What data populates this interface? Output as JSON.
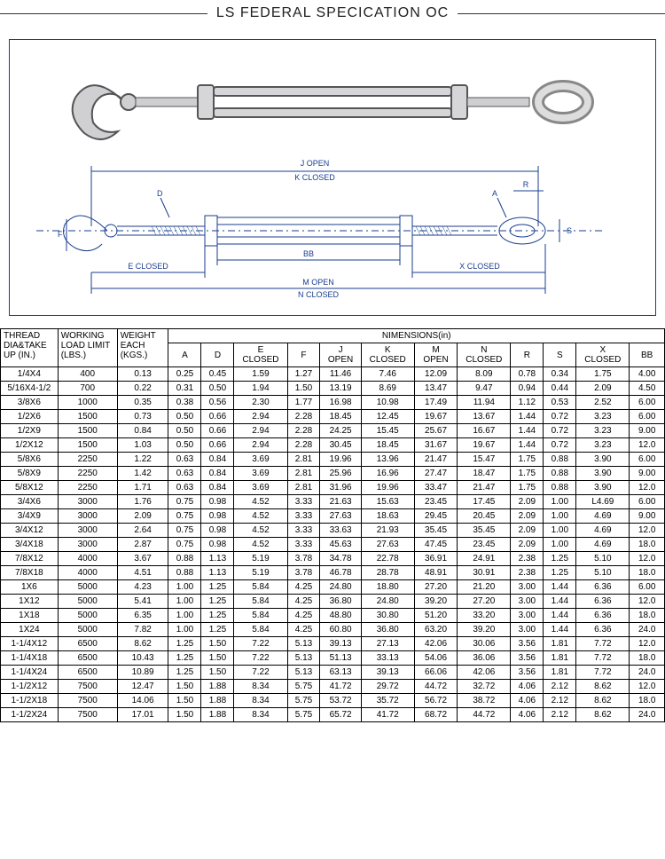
{
  "title": "LS FEDERAL SPECICATION OC",
  "diagram_labels": {
    "j_open": "J OPEN",
    "k_closed": "K CLOSED",
    "m_open": "M OPEN",
    "n_closed": "N CLOSED",
    "e_closed": "E CLOSED",
    "x_closed": "X CLOSED",
    "bb": "BB",
    "d": "D",
    "f": "F",
    "a": "A",
    "r": "R",
    "s": "S"
  },
  "table": {
    "head1": "THREAD DIA&TAKE UP (IN.)",
    "head2": "WORKING LOAD LIMIT (LBS.)",
    "head3": "WEIGHT EACH (KGS.)",
    "head_dim": "NIMENSIONS(in)",
    "cols": [
      "A",
      "D",
      "E CLOSED",
      "F",
      "J OPEN",
      "K CLOSED",
      "M OPEN",
      "N CLOSED",
      "R",
      "S",
      "X CLOSED",
      "BB"
    ],
    "rows": [
      [
        "1/4X4",
        "400",
        "0.13",
        "0.25",
        "0.45",
        "1.59",
        "1.27",
        "11.46",
        "7.46",
        "12.09",
        "8.09",
        "0.78",
        "0.34",
        "1.75",
        "4.00"
      ],
      [
        "5/16X4-1/2",
        "700",
        "0.22",
        "0.31",
        "0.50",
        "1.94",
        "1.50",
        "13.19",
        "8.69",
        "13.47",
        "9.47",
        "0.94",
        "0.44",
        "2.09",
        "4.50"
      ],
      [
        "3/8X6",
        "1000",
        "0.35",
        "0.38",
        "0.56",
        "2.30",
        "1.77",
        "16.98",
        "10.98",
        "17.49",
        "11.94",
        "1.12",
        "0.53",
        "2.52",
        "6.00"
      ],
      [
        "1/2X6",
        "1500",
        "0.73",
        "0.50",
        "0.66",
        "2.94",
        "2.28",
        "18.45",
        "12.45",
        "19.67",
        "13.67",
        "1.44",
        "0.72",
        "3.23",
        "6.00"
      ],
      [
        "1/2X9",
        "1500",
        "0.84",
        "0.50",
        "0.66",
        "2.94",
        "2.28",
        "24.25",
        "15.45",
        "25.67",
        "16.67",
        "1.44",
        "0.72",
        "3.23",
        "9.00"
      ],
      [
        "1/2X12",
        "1500",
        "1.03",
        "0.50",
        "0.66",
        "2.94",
        "2.28",
        "30.45",
        "18.45",
        "31.67",
        "19.67",
        "1.44",
        "0.72",
        "3.23",
        "12.0"
      ],
      [
        "5/8X6",
        "2250",
        "1.22",
        "0.63",
        "0.84",
        "3.69",
        "2.81",
        "19.96",
        "13.96",
        "21.47",
        "15.47",
        "1.75",
        "0.88",
        "3.90",
        "6.00"
      ],
      [
        "5/8X9",
        "2250",
        "1.42",
        "0.63",
        "0.84",
        "3.69",
        "2.81",
        "25.96",
        "16.96",
        "27.47",
        "18.47",
        "1.75",
        "0.88",
        "3.90",
        "9.00"
      ],
      [
        "5/8X12",
        "2250",
        "1.71",
        "0.63",
        "0.84",
        "3.69",
        "2.81",
        "31.96",
        "19.96",
        "33.47",
        "21.47",
        "1.75",
        "0.88",
        "3.90",
        "12.0"
      ],
      [
        "3/4X6",
        "3000",
        "1.76",
        "0.75",
        "0.98",
        "4.52",
        "3.33",
        "21.63",
        "15.63",
        "23.45",
        "17.45",
        "2.09",
        "1.00",
        "L4.69",
        "6.00"
      ],
      [
        "3/4X9",
        "3000",
        "2.09",
        "0.75",
        "0.98",
        "4.52",
        "3.33",
        "27.63",
        "18.63",
        "29.45",
        "20.45",
        "2.09",
        "1.00",
        "4.69",
        "9.00"
      ],
      [
        "3/4X12",
        "3000",
        "2.64",
        "0.75",
        "0.98",
        "4.52",
        "3.33",
        "33.63",
        "21.93",
        "35.45",
        "35.45",
        "2.09",
        "1.00",
        "4.69",
        "12.0"
      ],
      [
        "3/4X18",
        "3000",
        "2.87",
        "0.75",
        "0.98",
        "4.52",
        "3.33",
        "45.63",
        "27.63",
        "47.45",
        "23.45",
        "2.09",
        "1.00",
        "4.69",
        "18.0"
      ],
      [
        "7/8X12",
        "4000",
        "3.67",
        "0.88",
        "1.13",
        "5.19",
        "3.78",
        "34.78",
        "22.78",
        "36.91",
        "24.91",
        "2.38",
        "1.25",
        "5.10",
        "12.0"
      ],
      [
        "7/8X18",
        "4000",
        "4.51",
        "0.88",
        "1.13",
        "5.19",
        "3.78",
        "46.78",
        "28.78",
        "48.91",
        "30.91",
        "2.38",
        "1.25",
        "5.10",
        "18.0"
      ],
      [
        "1X6",
        "5000",
        "4.23",
        "1.00",
        "1.25",
        "5.84",
        "4.25",
        "24.80",
        "18.80",
        "27.20",
        "21.20",
        "3.00",
        "1.44",
        "6.36",
        "6.00"
      ],
      [
        "1X12",
        "5000",
        "5.41",
        "1.00",
        "1.25",
        "5.84",
        "4.25",
        "36.80",
        "24.80",
        "39.20",
        "27.20",
        "3.00",
        "1.44",
        "6.36",
        "12.0"
      ],
      [
        "1X18",
        "5000",
        "6.35",
        "1.00",
        "1.25",
        "5.84",
        "4.25",
        "48.80",
        "30.80",
        "51.20",
        "33.20",
        "3.00",
        "1.44",
        "6.36",
        "18.0"
      ],
      [
        "1X24",
        "5000",
        "7.82",
        "1.00",
        "1.25",
        "5.84",
        "4.25",
        "60.80",
        "36.80",
        "63.20",
        "39.20",
        "3.00",
        "1.44",
        "6.36",
        "24.0"
      ],
      [
        "1-1/4X12",
        "6500",
        "8.62",
        "1.25",
        "1.50",
        "7.22",
        "5.13",
        "39.13",
        "27.13",
        "42.06",
        "30.06",
        "3.56",
        "1.81",
        "7.72",
        "12.0"
      ],
      [
        "1-1/4X18",
        "6500",
        "10.43",
        "1.25",
        "1.50",
        "7.22",
        "5.13",
        "51.13",
        "33.13",
        "54.06",
        "36.06",
        "3.56",
        "1.81",
        "7.72",
        "18.0"
      ],
      [
        "1-1/4X24",
        "6500",
        "10.89",
        "1.25",
        "1.50",
        "7.22",
        "5.13",
        "63.13",
        "39.13",
        "66.06",
        "42.06",
        "3.56",
        "1.81",
        "7.72",
        "24.0"
      ],
      [
        "1-1/2X12",
        "7500",
        "12.47",
        "1.50",
        "1.88",
        "8.34",
        "5.75",
        "41.72",
        "29.72",
        "44.72",
        "32.72",
        "4.06",
        "2.12",
        "8.62",
        "12.0"
      ],
      [
        "1-1/2X18",
        "7500",
        "14.06",
        "1.50",
        "1.88",
        "8.34",
        "5.75",
        "53.72",
        "35.72",
        "56.72",
        "38.72",
        "4.06",
        "2.12",
        "8.62",
        "18.0"
      ],
      [
        "1-1/2X24",
        "7500",
        "17.01",
        "1.50",
        "1.88",
        "8.34",
        "5.75",
        "65.72",
        "41.72",
        "68.72",
        "44.72",
        "4.06",
        "2.12",
        "8.62",
        "24.0"
      ]
    ]
  }
}
